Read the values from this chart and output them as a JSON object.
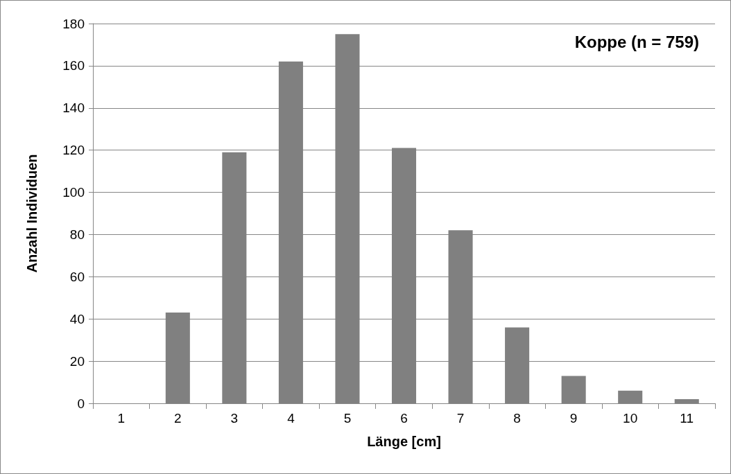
{
  "chart_data": {
    "type": "bar",
    "title": "Koppe (n = 759)",
    "xlabel": "Länge [cm]",
    "ylabel": "Anzahl Individuen",
    "categories": [
      "1",
      "2",
      "3",
      "4",
      "5",
      "6",
      "7",
      "8",
      "9",
      "10",
      "11"
    ],
    "values": [
      0,
      43,
      119,
      162,
      175,
      121,
      82,
      36,
      13,
      6,
      2
    ],
    "color": "#808080",
    "ylim": [
      0,
      180
    ],
    "yticks": [
      0,
      20,
      40,
      60,
      80,
      100,
      120,
      140,
      160,
      180
    ],
    "grid": "y"
  }
}
